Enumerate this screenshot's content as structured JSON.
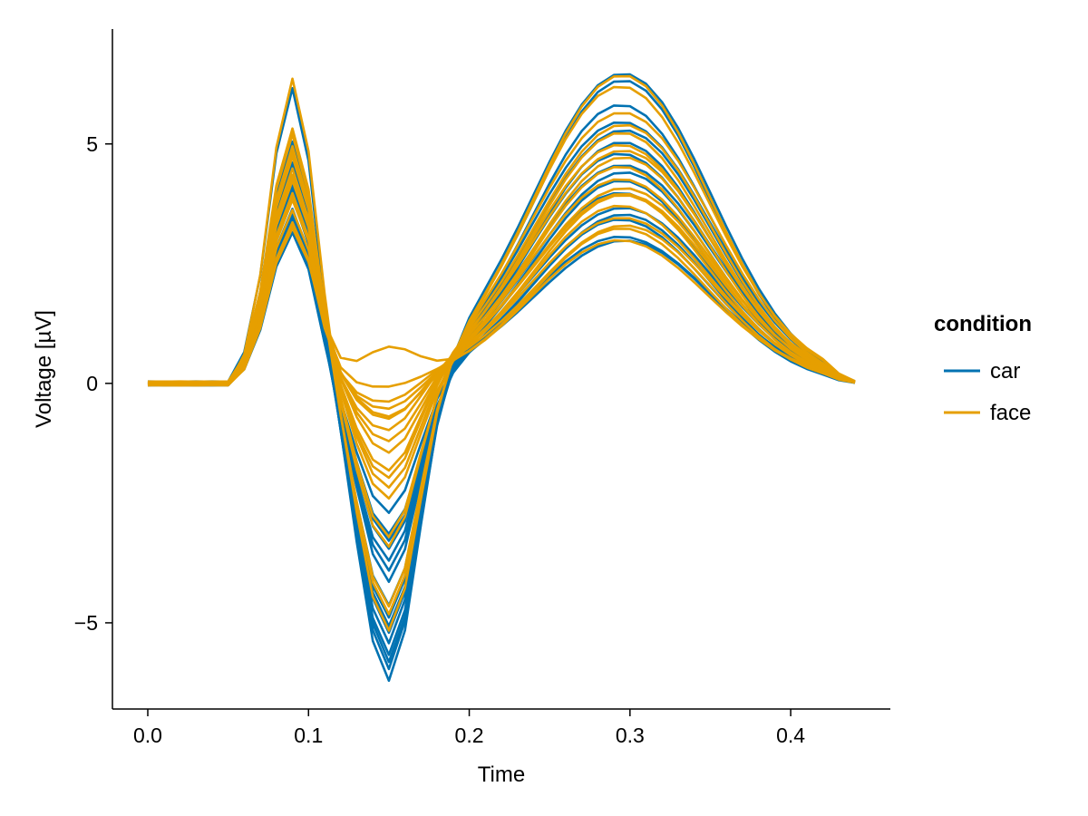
{
  "chart_data": {
    "type": "line",
    "xlabel": "Time",
    "ylabel": "Voltage [µV]",
    "xlim": [
      -0.022,
      0.462
    ],
    "ylim": [
      -6.8,
      7.4
    ],
    "xticks": [
      0.0,
      0.1,
      0.2,
      0.3,
      0.4
    ],
    "xtick_labels": [
      "0.0",
      "0.1",
      "0.2",
      "0.3",
      "0.4"
    ],
    "yticks": [
      -5,
      0,
      5
    ],
    "ytick_labels": [
      "−5",
      "0",
      "5"
    ],
    "grid": false,
    "legend": {
      "title": "condition",
      "placement": "right",
      "entries": [
        {
          "label": "car",
          "color": "#0072B2"
        },
        {
          "label": "face",
          "color": "#E69F00"
        }
      ]
    },
    "x": [
      0.0,
      0.01,
      0.02,
      0.03,
      0.04,
      0.05,
      0.06,
      0.07,
      0.08,
      0.09,
      0.1,
      0.11,
      0.12,
      0.13,
      0.14,
      0.15,
      0.16,
      0.17,
      0.18,
      0.19,
      0.2,
      0.21,
      0.22,
      0.23,
      0.24,
      0.25,
      0.26,
      0.27,
      0.28,
      0.29,
      0.3,
      0.31,
      0.32,
      0.33,
      0.34,
      0.35,
      0.36,
      0.37,
      0.38,
      0.39,
      0.4,
      0.41,
      0.42,
      0.43,
      0.44
    ],
    "series_template": {
      "description_free": true,
      "baseline_pre": [
        0.0,
        0.0,
        0.0,
        0.0,
        0.0,
        0.0
      ],
      "p1_peak_time": 0.09,
      "n1_peak_time": 0.15,
      "p3_peak_time": 0.295
    },
    "series": [
      {
        "condition": "car",
        "p1": 6.2,
        "n1": -6.4,
        "p3": 6.5
      },
      {
        "condition": "car",
        "p1": 5.1,
        "n1": -6.2,
        "p3": 6.3
      },
      {
        "condition": "car",
        "p1": 4.8,
        "n1": -6.0,
        "p3": 5.8
      },
      {
        "condition": "car",
        "p1": 4.6,
        "n1": -5.8,
        "p3": 5.5
      },
      {
        "condition": "car",
        "p1": 4.4,
        "n1": -5.6,
        "p3": 5.3
      },
      {
        "condition": "car",
        "p1": 4.2,
        "n1": -5.4,
        "p3": 5.0
      },
      {
        "condition": "car",
        "p1": 4.0,
        "n1": -5.2,
        "p3": 4.8
      },
      {
        "condition": "car",
        "p1": 3.9,
        "n1": -5.0,
        "p3": 4.6
      },
      {
        "condition": "car",
        "p1": 3.7,
        "n1": -4.8,
        "p3": 4.4
      },
      {
        "condition": "car",
        "p1": 3.5,
        "n1": -4.3,
        "p3": 4.2
      },
      {
        "condition": "car",
        "p1": 3.4,
        "n1": -4.0,
        "p3": 4.0
      },
      {
        "condition": "car",
        "p1": 3.3,
        "n1": -3.8,
        "p3": 3.7
      },
      {
        "condition": "car",
        "p1": 3.2,
        "n1": -3.6,
        "p3": 3.5
      },
      {
        "condition": "car",
        "p1": 4.1,
        "n1": -3.4,
        "p3": 3.4
      },
      {
        "condition": "car",
        "p1": 4.5,
        "n1": -3.2,
        "p3": 3.1
      },
      {
        "condition": "car",
        "p1": 3.6,
        "n1": -2.8,
        "p3": 3.0
      },
      {
        "condition": "face",
        "p1": 6.4,
        "n1": -5.4,
        "p3": 6.4
      },
      {
        "condition": "face",
        "p1": 5.3,
        "n1": -5.0,
        "p3": 6.2
      },
      {
        "condition": "face",
        "p1": 5.2,
        "n1": -4.8,
        "p3": 5.7
      },
      {
        "condition": "face",
        "p1": 5.0,
        "n1": -3.6,
        "p3": 5.4
      },
      {
        "condition": "face",
        "p1": 4.8,
        "n1": -3.4,
        "p3": 5.2
      },
      {
        "condition": "face",
        "p1": 4.7,
        "n1": -2.3,
        "p3": 5.0
      },
      {
        "condition": "face",
        "p1": 4.5,
        "n1": -2.1,
        "p3": 4.9
      },
      {
        "condition": "face",
        "p1": 4.4,
        "n1": -2.0,
        "p3": 4.7
      },
      {
        "condition": "face",
        "p1": 4.3,
        "n1": -1.6,
        "p3": 4.5
      },
      {
        "condition": "face",
        "p1": 4.2,
        "n1": -1.3,
        "p3": 4.3
      },
      {
        "condition": "face",
        "p1": 4.0,
        "n1": -1.1,
        "p3": 4.1
      },
      {
        "condition": "face",
        "p1": 3.9,
        "n1": -0.9,
        "p3": 3.9
      },
      {
        "condition": "face",
        "p1": 3.8,
        "n1": -0.8,
        "p3": 3.7
      },
      {
        "condition": "face",
        "p1": 3.6,
        "n1": -0.6,
        "p3": 3.5
      },
      {
        "condition": "face",
        "p1": 3.4,
        "n1": -0.5,
        "p3": 3.3
      },
      {
        "condition": "face",
        "p1": 3.3,
        "n1": -0.2,
        "p3": 3.2
      },
      {
        "condition": "face",
        "p1": 3.2,
        "n1": 0.7,
        "p3": 3.0
      },
      {
        "condition": "face",
        "p1": 4.9,
        "n1": -2.5,
        "p3": 4.0
      }
    ]
  }
}
